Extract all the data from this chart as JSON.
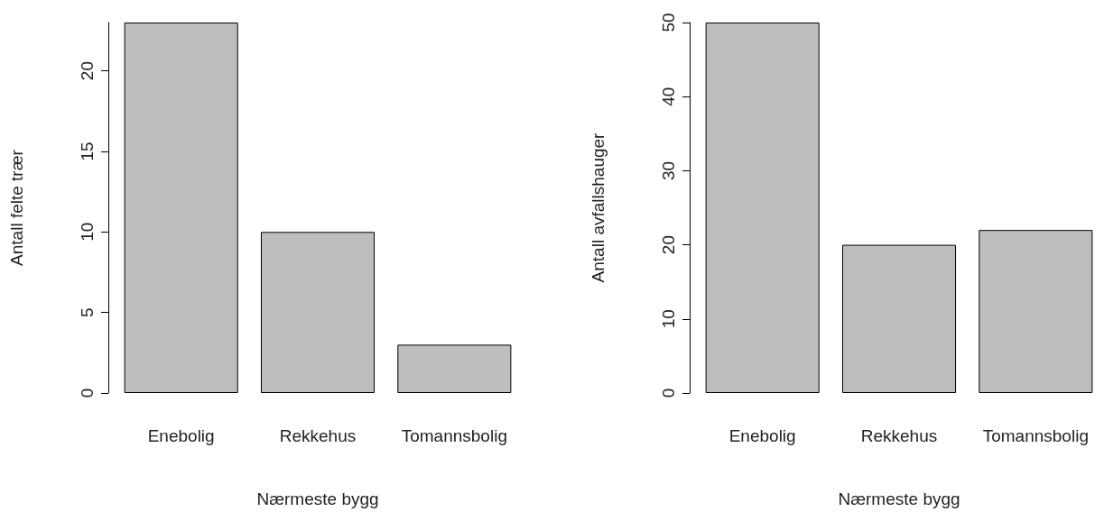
{
  "chart_data": [
    {
      "type": "bar",
      "xlabel": "Nærmeste bygg",
      "ylabel": "Antall felte trær",
      "categories": [
        "Enebolig",
        "Rekkehus",
        "Tomannsbolig"
      ],
      "values": [
        23,
        10,
        3
      ],
      "color": "#bebebe",
      "ylim": [
        0,
        23
      ],
      "yticks": [
        0,
        5,
        10,
        15,
        20
      ],
      "grid": false
    },
    {
      "type": "bar",
      "xlabel": "Nærmeste bygg",
      "ylabel": "Antall avfallshauger",
      "categories": [
        "Enebolig",
        "Rekkehus",
        "Tomannsbolig"
      ],
      "values": [
        50,
        20,
        22
      ],
      "color": "#bebebe",
      "ylim": [
        0,
        50
      ],
      "yticks": [
        0,
        10,
        20,
        30,
        40,
        50
      ],
      "grid": false
    }
  ]
}
